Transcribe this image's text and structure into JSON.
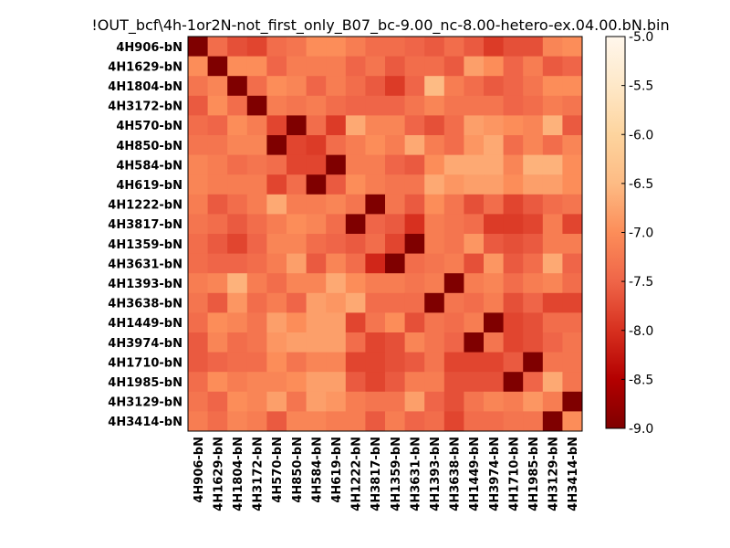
{
  "chart_data": {
    "type": "heatmap",
    "title": "!OUT_bcf\\4h-1or2N-not_first_only_B07_bc-9.00_nc-8.00-hetero-ex.04.00.bN.bin",
    "labels": [
      "4H906-bN",
      "4H1629-bN",
      "4H1804-bN",
      "4H3172-bN",
      "4H570-bN",
      "4H850-bN",
      "4H584-bN",
      "4H619-bN",
      "4H1222-bN",
      "4H3817-bN",
      "4H1359-bN",
      "4H3631-bN",
      "4H1393-bN",
      "4H3638-bN",
      "4H1449-bN",
      "4H3974-bN",
      "4H1710-bN",
      "4H1985-bN",
      "4H3129-bN",
      "4H3414-bN"
    ],
    "values": [
      [
        -9.0,
        -7.4,
        -7.7,
        -7.8,
        -7.4,
        -7.3,
        -7.0,
        -7.0,
        -7.2,
        -7.4,
        -7.4,
        -7.5,
        -7.6,
        -7.4,
        -7.6,
        -7.9,
        -7.7,
        -7.7,
        -7.1,
        -7.0
      ],
      [
        -7.0,
        -9.0,
        -7.0,
        -7.0,
        -7.5,
        -7.2,
        -7.2,
        -7.2,
        -7.5,
        -7.3,
        -7.6,
        -7.4,
        -7.4,
        -7.6,
        -6.8,
        -7.0,
        -7.5,
        -7.2,
        -7.6,
        -7.5
      ],
      [
        -7.3,
        -7.1,
        -9.0,
        -7.4,
        -7.0,
        -7.1,
        -7.5,
        -7.2,
        -7.4,
        -7.6,
        -7.9,
        -7.5,
        -6.5,
        -7.2,
        -7.4,
        -7.6,
        -7.5,
        -7.3,
        -7.0,
        -7.0
      ],
      [
        -7.6,
        -7.0,
        -7.4,
        -9.0,
        -7.2,
        -7.3,
        -7.2,
        -7.4,
        -7.5,
        -7.5,
        -7.5,
        -7.3,
        -7.1,
        -7.3,
        -7.3,
        -7.3,
        -7.5,
        -7.4,
        -7.2,
        -7.3
      ],
      [
        -7.4,
        -7.5,
        -7.0,
        -7.2,
        -7.8,
        -9.0,
        -7.4,
        -7.9,
        -6.7,
        -7.1,
        -7.1,
        -7.5,
        -7.7,
        -7.4,
        -6.8,
        -6.9,
        -7.0,
        -7.1,
        -6.6,
        -7.6
      ],
      [
        -7.3,
        -7.3,
        -7.1,
        -7.1,
        -9.0,
        -7.8,
        -7.9,
        -7.4,
        -7.2,
        -7.0,
        -7.2,
        -6.7,
        -7.2,
        -7.4,
        -6.9,
        -6.7,
        -7.4,
        -7.1,
        -7.4,
        -7.1
      ],
      [
        -7.1,
        -7.2,
        -7.4,
        -7.3,
        -7.4,
        -7.8,
        -7.8,
        -9.0,
        -7.2,
        -7.2,
        -7.5,
        -7.6,
        -7.0,
        -6.7,
        -6.7,
        -6.7,
        -7.1,
        -6.6,
        -6.6,
        -7.0
      ],
      [
        -7.1,
        -7.2,
        -7.2,
        -7.2,
        -7.8,
        -7.4,
        -9.0,
        -7.6,
        -7.0,
        -7.2,
        -7.3,
        -7.3,
        -6.7,
        -6.9,
        -6.8,
        -6.8,
        -7.0,
        -6.8,
        -6.8,
        -7.0
      ],
      [
        -7.2,
        -7.6,
        -7.4,
        -7.2,
        -6.7,
        -7.2,
        -7.2,
        -7.1,
        -7.3,
        -9.0,
        -7.3,
        -7.6,
        -7.0,
        -7.3,
        -7.7,
        -7.4,
        -7.8,
        -7.6,
        -7.4,
        -7.3
      ],
      [
        -7.3,
        -7.4,
        -7.6,
        -7.4,
        -7.2,
        -7.0,
        -7.1,
        -7.4,
        -9.0,
        -7.5,
        -7.6,
        -8.0,
        -7.2,
        -7.3,
        -7.4,
        -7.9,
        -7.9,
        -7.8,
        -7.2,
        -7.8
      ],
      [
        -7.4,
        -7.6,
        -7.8,
        -7.5,
        -7.1,
        -7.1,
        -7.4,
        -7.5,
        -7.6,
        -7.4,
        -7.8,
        -9.0,
        -7.2,
        -7.3,
        -6.9,
        -7.6,
        -7.7,
        -7.6,
        -7.2,
        -7.2
      ],
      [
        -7.4,
        -7.5,
        -7.5,
        -7.4,
        -7.2,
        -6.8,
        -7.6,
        -7.1,
        -7.4,
        -8.1,
        -9.0,
        -7.4,
        -7.3,
        -7.2,
        -7.7,
        -6.9,
        -7.6,
        -7.4,
        -6.7,
        -7.5
      ],
      [
        -7.2,
        -7.1,
        -6.6,
        -7.2,
        -7.4,
        -7.1,
        -7.1,
        -6.7,
        -7.0,
        -7.2,
        -7.2,
        -7.3,
        -7.2,
        -9.0,
        -7.2,
        -7.1,
        -7.4,
        -7.2,
        -7.1,
        -7.4
      ],
      [
        -7.3,
        -7.6,
        -6.9,
        -7.4,
        -7.2,
        -7.5,
        -6.8,
        -6.9,
        -6.7,
        -7.4,
        -7.4,
        -7.4,
        -9.0,
        -7.3,
        -7.4,
        -7.2,
        -7.7,
        -7.5,
        -7.8,
        -7.8
      ],
      [
        -7.4,
        -7.0,
        -7.1,
        -7.3,
        -6.8,
        -7.0,
        -6.8,
        -6.8,
        -7.8,
        -7.3,
        -7.0,
        -7.7,
        -7.3,
        -7.4,
        -7.2,
        -9.0,
        -7.8,
        -7.7,
        -7.4,
        -7.4
      ],
      [
        -7.6,
        -7.1,
        -7.4,
        -7.3,
        -6.9,
        -6.8,
        -6.8,
        -6.8,
        -7.4,
        -7.8,
        -7.7,
        -7.1,
        -7.3,
        -7.5,
        -9.0,
        -7.3,
        -7.8,
        -7.7,
        -7.5,
        -7.3
      ],
      [
        -7.6,
        -7.5,
        -7.4,
        -7.4,
        -7.0,
        -7.3,
        -7.1,
        -7.1,
        -7.8,
        -7.8,
        -7.7,
        -7.6,
        -7.3,
        -7.8,
        -7.8,
        -7.8,
        -7.6,
        -9.0,
        -7.3,
        -7.3
      ],
      [
        -7.4,
        -7.0,
        -7.2,
        -7.1,
        -7.1,
        -7.0,
        -6.8,
        -6.8,
        -7.6,
        -7.8,
        -7.6,
        -7.2,
        -7.2,
        -7.7,
        -7.7,
        -7.7,
        -9.0,
        -7.5,
        -6.7,
        -7.3
      ],
      [
        -7.3,
        -7.5,
        -7.0,
        -7.1,
        -6.8,
        -7.3,
        -6.8,
        -6.9,
        -7.2,
        -7.3,
        -7.3,
        -6.8,
        -7.5,
        -7.7,
        -7.3,
        -7.1,
        -7.2,
        -6.9,
        -7.2,
        -9.0
      ],
      [
        -7.2,
        -7.4,
        -7.1,
        -7.2,
        -7.6,
        -7.1,
        -7.1,
        -7.2,
        -7.2,
        -7.6,
        -7.2,
        -7.5,
        -7.4,
        -7.8,
        -7.4,
        -7.4,
        -7.3,
        -7.3,
        -9.0,
        -7.0
      ]
    ],
    "colorbar": {
      "min": -9.0,
      "max": -5.0,
      "ticks": [
        "-5.0",
        "-5.5",
        "-6.0",
        "-6.5",
        "-7.0",
        "-7.5",
        "-8.0",
        "-8.5",
        "-9.0"
      ]
    },
    "colormap": "OrRd_r"
  }
}
